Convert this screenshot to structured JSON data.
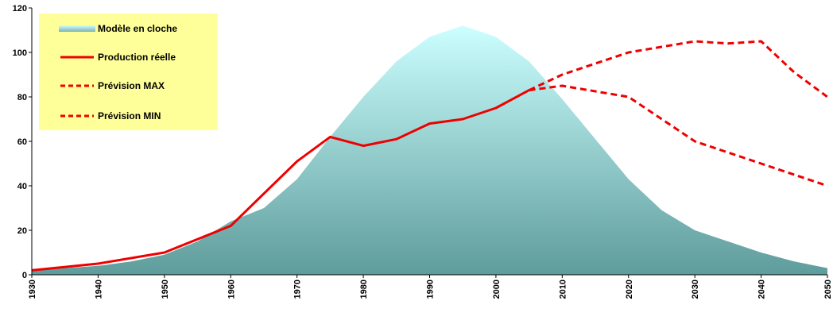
{
  "chart_data": {
    "type": "area",
    "title": "",
    "xlabel": "",
    "ylabel": "",
    "xlim": [
      1930,
      2050
    ],
    "ylim": [
      0,
      120
    ],
    "x_ticks": [
      1930,
      1940,
      1950,
      1960,
      1970,
      1980,
      1990,
      2000,
      2010,
      2020,
      2030,
      2040,
      2050
    ],
    "y_ticks": [
      0,
      20,
      40,
      60,
      80,
      100,
      120
    ],
    "grid": false,
    "legend_position": "top-left",
    "legend_background": "#ffff99",
    "series": [
      {
        "name": "Modèle en cloche",
        "type": "area",
        "color": "#7fc8c8",
        "x": [
          1930,
          1935,
          1940,
          1945,
          1950,
          1955,
          1960,
          1965,
          1970,
          1975,
          1980,
          1985,
          1990,
          1995,
          2000,
          2005,
          2010,
          2015,
          2020,
          2025,
          2030,
          2035,
          2040,
          2045,
          2050
        ],
        "y": [
          2,
          3,
          4,
          6,
          9,
          15,
          24,
          30,
          43,
          62,
          80,
          96,
          107,
          112,
          107,
          96,
          79,
          61,
          43,
          29,
          20,
          15,
          10,
          6,
          3
        ]
      },
      {
        "name": "Production réelle",
        "type": "line",
        "style": "solid",
        "color": "#ee0000",
        "x": [
          1930,
          1940,
          1950,
          1960,
          1970,
          1975,
          1980,
          1985,
          1990,
          1995,
          2000,
          2005
        ],
        "y": [
          2,
          5,
          10,
          22,
          51,
          62,
          58,
          61,
          68,
          70,
          75,
          83
        ]
      },
      {
        "name": "Prévision MAX",
        "type": "line",
        "style": "dashed",
        "color": "#ee0000",
        "x": [
          2005,
          2010,
          2020,
          2030,
          2035,
          2040,
          2045,
          2050
        ],
        "y": [
          83,
          90,
          100,
          105,
          104,
          105,
          91,
          80
        ]
      },
      {
        "name": "Prévision MIN",
        "type": "line",
        "style": "dashed",
        "color": "#ee0000",
        "x": [
          2005,
          2010,
          2020,
          2030,
          2040,
          2050
        ],
        "y": [
          83,
          85,
          80,
          60,
          50,
          40
        ]
      }
    ]
  }
}
